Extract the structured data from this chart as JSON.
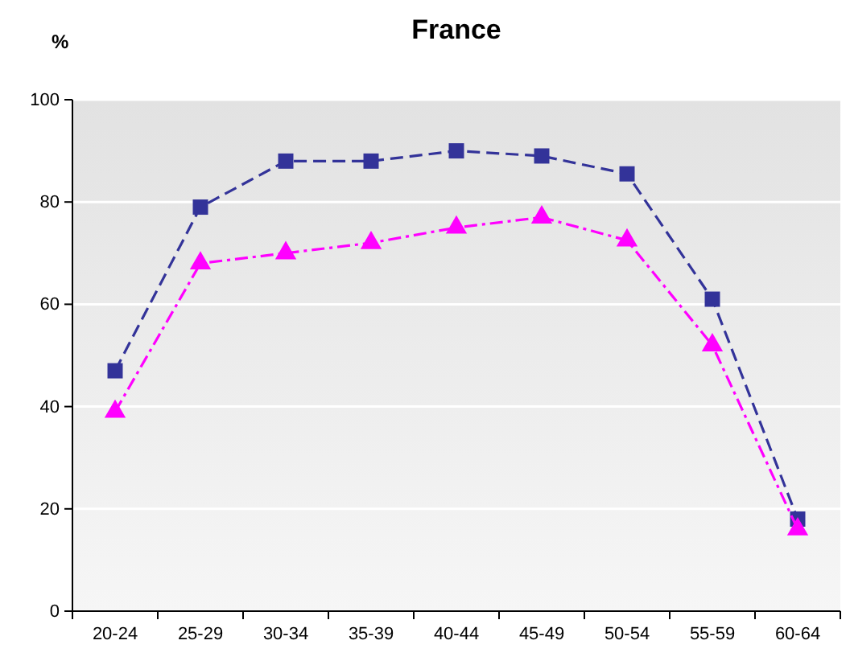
{
  "chart_data": {
    "type": "line",
    "title": "France",
    "ylabel": "%",
    "categories": [
      "20-24",
      "25-29",
      "30-34",
      "35-39",
      "40-44",
      "45-49",
      "50-54",
      "55-59",
      "60-64"
    ],
    "series": [
      {
        "color": "#333399",
        "marker": "square",
        "line_style": "dashed",
        "values": [
          47,
          79,
          88,
          88,
          90,
          89,
          85.5,
          61,
          18
        ]
      },
      {
        "color": "#ff00ff",
        "marker": "triangle",
        "line_style": "dashdot",
        "values": [
          39,
          68,
          70,
          72,
          75,
          77,
          72.5,
          52,
          16
        ]
      }
    ],
    "ylim": [
      0,
      100
    ],
    "yticks": [
      0,
      20,
      40,
      60,
      80,
      100
    ],
    "grid": "y"
  }
}
